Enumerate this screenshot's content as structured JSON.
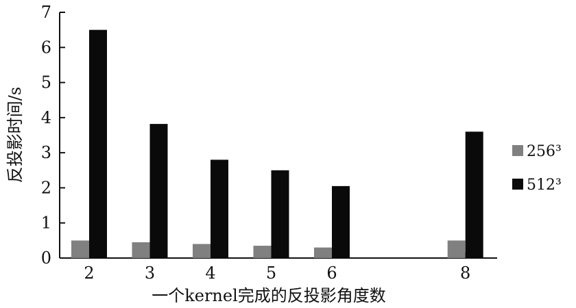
{
  "chart_data": {
    "type": "bar",
    "x": [
      "2",
      "3",
      "4",
      "5",
      "6",
      "8"
    ],
    "x_tick_labels": [
      "2",
      "3",
      "4",
      "5",
      "6",
      "8"
    ],
    "series": [
      {
        "name": "256³",
        "values": [
          0.5,
          0.45,
          0.4,
          0.35,
          0.3,
          0.5
        ],
        "color": "#808080"
      },
      {
        "name": "512³",
        "values": [
          6.5,
          3.82,
          2.8,
          2.5,
          2.05,
          3.6
        ],
        "color": "#0a0a0a"
      }
    ],
    "xlabel": "一个kernel完成的反投影角度数",
    "ylabel": "反投影时间/s",
    "ylim": [
      0,
      7
    ],
    "y_ticks": [
      "0",
      "1",
      "2",
      "3",
      "4",
      "5",
      "6",
      "7"
    ],
    "grid": false,
    "legend_position": "right"
  }
}
